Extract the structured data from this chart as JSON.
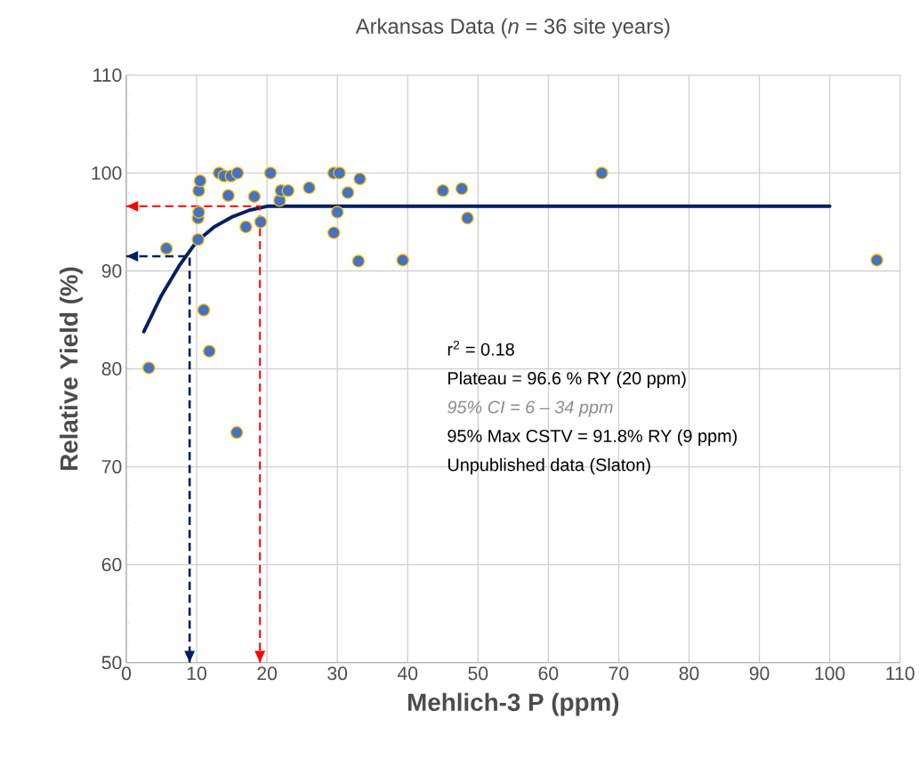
{
  "chart_data": {
    "type": "scatter",
    "title": "Arkansas Data (*n* = 36 site years)",
    "xlabel": "Mehlich-3 P (ppm)",
    "ylabel": "Relative Yield (%)",
    "xlim": [
      0,
      110
    ],
    "ylim": [
      50,
      110
    ],
    "xticks": [
      0,
      10,
      20,
      30,
      40,
      50,
      60,
      70,
      80,
      90,
      100,
      110
    ],
    "yticks": [
      50,
      60,
      70,
      80,
      90,
      100,
      110
    ],
    "grid": true,
    "marker": "circle",
    "series": [
      {
        "color": "#4472c4",
        "x": [
          3.2,
          5.7,
          10.2,
          10.2,
          10.3,
          10.3,
          10.5,
          11,
          11.8,
          13.2,
          13.9,
          14.9,
          15.7,
          15.8,
          14.5,
          17,
          18.2,
          19.1,
          20.5,
          21.8,
          22,
          23,
          26,
          29.5,
          30.3,
          29.5,
          30,
          31.5,
          33.2,
          33,
          39.3,
          45,
          47.7,
          48.5,
          67.6,
          106.7
        ],
        "values": [
          80.1,
          92.3,
          93.2,
          95.4,
          96,
          98.2,
          99.2,
          86,
          81.8,
          100,
          99.7,
          99.7,
          73.5,
          100,
          97.7,
          94.5,
          97.6,
          95,
          100,
          97.2,
          98.2,
          98.2,
          98.5,
          100,
          100,
          93.9,
          96,
          98,
          99.4,
          91,
          91.1,
          98.2,
          98.4,
          95.4,
          100,
          91.1
        ]
      },
      {
        "type": "line",
        "color": "#002060",
        "marker": "none",
        "line_style": "solid",
        "x": [
          2.5,
          5,
          7.5,
          10,
          12.5,
          15,
          17.5,
          20,
          100
        ],
        "values": [
          83.8,
          87.5,
          90.5,
          93,
          94.5,
          95.5,
          96.2,
          96.6,
          96.6
        ]
      },
      {
        "type": "line",
        "color": "#ff0000",
        "marker": "none",
        "line_style": "dashed",
        "x": [
          0,
          19,
          19
        ],
        "values": [
          96.6,
          96.6,
          50
        ]
      },
      {
        "type": "line",
        "color": "#002060",
        "marker": "none",
        "line_style": "dashed",
        "x": [
          0,
          9,
          9
        ],
        "values": [
          91.5,
          91.5,
          50
        ]
      }
    ],
    "annotations": [
      "r$^{2}$ = 0.18",
      "Plateau = 96.6 % RY (20 ppm)",
      "95% CI = 6 – 34 ppm",
      "95% Max CSTV  = 91.8% RY (9 ppm)",
      "Unpublished data (Slaton)"
    ]
  }
}
